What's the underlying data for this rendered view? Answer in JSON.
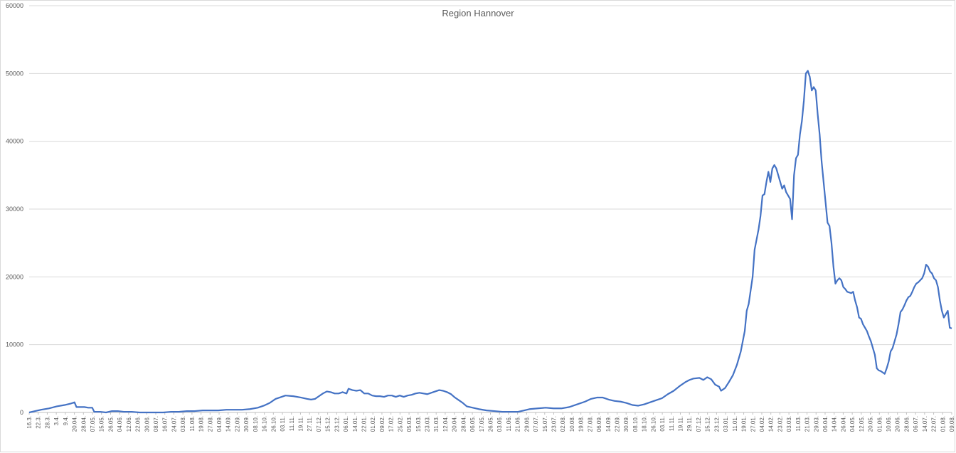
{
  "chart_data": {
    "type": "line",
    "title": "Region Hannover",
    "xlabel": "",
    "ylabel": "",
    "ylim": [
      0,
      60000
    ],
    "yticks": [
      0,
      10000,
      20000,
      30000,
      40000,
      50000,
      60000
    ],
    "grid": true,
    "legend": "none",
    "line_color": "#4472c4",
    "x_tick_labels": [
      "16.3.",
      "22.3.",
      "28.3.",
      "3.4.",
      "9.4.",
      "20.04.",
      "28.04.",
      "07.05.",
      "15.05.",
      "26.05.",
      "04.06.",
      "12.06.",
      "22.06.",
      "30.06.",
      "08.07.",
      "16.07.",
      "24.07.",
      "03.08.",
      "11.08.",
      "19.08.",
      "27.08.",
      "04.09.",
      "14.09.",
      "22.09.",
      "30.09.",
      "08.10.",
      "16.10.",
      "26.10.",
      "03.11.",
      "11.11.",
      "19.11.",
      "27.11.",
      "07.12.",
      "15.12.",
      "23.12.",
      "06.01.",
      "14.01.",
      "22.01.",
      "01.02.",
      "09.02.",
      "17.02.",
      "25.02.",
      "05.03.",
      "15.03.",
      "23.03.",
      "31.03.",
      "12.04.",
      "20.04.",
      "28.04.",
      "06.05.",
      "17.05.",
      "26.05.",
      "03.06.",
      "11.06.",
      "21.06.",
      "29.06.",
      "07.07.",
      "15.07.",
      "23.07.",
      "02.08.",
      "10.08.",
      "19.08.",
      "27.08.",
      "06.09.",
      "14.09.",
      "22.09.",
      "30.09.",
      "08.10.",
      "18.10.",
      "26.10.",
      "03.11.",
      "11.11.",
      "19.11.",
      "29.11.",
      "07.12.",
      "15.12.",
      "23.12.",
      "03.01.",
      "11.01.",
      "19.01.",
      "27.01.",
      "04.02.",
      "14.02.",
      "23.02.",
      "03.03.",
      "11.03.",
      "21.03.",
      "29.03.",
      "06.04.",
      "14.04.",
      "26.04.",
      "04.05.",
      "12.05.",
      "20.05.",
      "01.06.",
      "10.06.",
      "20.06.",
      "28.06.",
      "06.07.",
      "14.07.",
      "22.07.",
      "01.08.",
      "09.08."
    ],
    "series": [
      {
        "values": [
          [
            0,
            0
          ],
          [
            3,
            200
          ],
          [
            6,
            400
          ],
          [
            10,
            600
          ],
          [
            14,
            900
          ],
          [
            18,
            1100
          ],
          [
            21,
            1300
          ],
          [
            23,
            1500
          ],
          [
            24,
            800
          ],
          [
            26,
            800
          ],
          [
            28,
            800
          ],
          [
            30,
            700
          ],
          [
            32,
            700
          ],
          [
            33,
            100
          ],
          [
            36,
            100
          ],
          [
            39,
            0
          ],
          [
            42,
            200
          ],
          [
            45,
            200
          ],
          [
            48,
            100
          ],
          [
            52,
            100
          ],
          [
            56,
            0
          ],
          [
            60,
            0
          ],
          [
            64,
            0
          ],
          [
            68,
            0
          ],
          [
            72,
            100
          ],
          [
            76,
            100
          ],
          [
            80,
            200
          ],
          [
            84,
            200
          ],
          [
            88,
            300
          ],
          [
            92,
            300
          ],
          [
            96,
            300
          ],
          [
            100,
            400
          ],
          [
            104,
            400
          ],
          [
            108,
            400
          ],
          [
            112,
            500
          ],
          [
            116,
            700
          ],
          [
            119,
            1000
          ],
          [
            122,
            1400
          ],
          [
            125,
            2000
          ],
          [
            127,
            2200
          ],
          [
            130,
            2500
          ],
          [
            134,
            2400
          ],
          [
            138,
            2200
          ],
          [
            141,
            2000
          ],
          [
            143,
            1900
          ],
          [
            145,
            2000
          ],
          [
            147,
            2400
          ],
          [
            149,
            2800
          ],
          [
            151,
            3100
          ],
          [
            153,
            3000
          ],
          [
            155,
            2800
          ],
          [
            157,
            2800
          ],
          [
            159,
            3000
          ],
          [
            161,
            2800
          ],
          [
            162,
            3500
          ],
          [
            164,
            3300
          ],
          [
            166,
            3200
          ],
          [
            168,
            3300
          ],
          [
            170,
            2800
          ],
          [
            172,
            2800
          ],
          [
            174,
            2500
          ],
          [
            176,
            2400
          ],
          [
            178,
            2400
          ],
          [
            180,
            2300
          ],
          [
            182,
            2500
          ],
          [
            184,
            2500
          ],
          [
            186,
            2300
          ],
          [
            188,
            2500
          ],
          [
            190,
            2300
          ],
          [
            192,
            2500
          ],
          [
            194,
            2600
          ],
          [
            196,
            2800
          ],
          [
            198,
            2900
          ],
          [
            200,
            2800
          ],
          [
            202,
            2700
          ],
          [
            204,
            2900
          ],
          [
            206,
            3100
          ],
          [
            208,
            3300
          ],
          [
            210,
            3200
          ],
          [
            212,
            3000
          ],
          [
            214,
            2700
          ],
          [
            216,
            2200
          ],
          [
            218,
            1800
          ],
          [
            220,
            1400
          ],
          [
            222,
            900
          ],
          [
            225,
            700
          ],
          [
            228,
            500
          ],
          [
            232,
            300
          ],
          [
            236,
            200
          ],
          [
            240,
            100
          ],
          [
            244,
            100
          ],
          [
            248,
            100
          ],
          [
            251,
            300
          ],
          [
            254,
            500
          ],
          [
            258,
            600
          ],
          [
            262,
            700
          ],
          [
            266,
            600
          ],
          [
            270,
            600
          ],
          [
            274,
            800
          ],
          [
            278,
            1200
          ],
          [
            282,
            1600
          ],
          [
            285,
            2000
          ],
          [
            288,
            2200
          ],
          [
            291,
            2200
          ],
          [
            294,
            1900
          ],
          [
            297,
            1700
          ],
          [
            300,
            1600
          ],
          [
            303,
            1400
          ],
          [
            306,
            1100
          ],
          [
            309,
            1000
          ],
          [
            312,
            1200
          ],
          [
            315,
            1500
          ],
          [
            318,
            1800
          ],
          [
            321,
            2100
          ],
          [
            324,
            2700
          ],
          [
            327,
            3200
          ],
          [
            330,
            3900
          ],
          [
            333,
            4500
          ],
          [
            335,
            4800
          ],
          [
            337,
            5000
          ],
          [
            340,
            5100
          ],
          [
            342,
            4800
          ],
          [
            344,
            5200
          ],
          [
            346,
            4900
          ],
          [
            348,
            4100
          ],
          [
            350,
            3800
          ],
          [
            351,
            3200
          ],
          [
            353,
            3600
          ],
          [
            355,
            4500
          ],
          [
            357,
            5500
          ],
          [
            359,
            7000
          ],
          [
            361,
            9000
          ],
          [
            363,
            12000
          ],
          [
            364,
            15000
          ],
          [
            365,
            16000
          ],
          [
            366,
            18000
          ],
          [
            367,
            20000
          ],
          [
            368,
            24000
          ],
          [
            370,
            27000
          ],
          [
            371,
            29000
          ],
          [
            372,
            32000
          ],
          [
            373,
            32200
          ],
          [
            374,
            34000
          ],
          [
            375,
            35500
          ],
          [
            376,
            34000
          ],
          [
            377,
            36000
          ],
          [
            378,
            36500
          ],
          [
            379,
            36000
          ],
          [
            380,
            35000
          ],
          [
            381,
            34000
          ],
          [
            382,
            33000
          ],
          [
            383,
            33500
          ],
          [
            384,
            32500
          ],
          [
            385,
            32000
          ],
          [
            386,
            31500
          ],
          [
            387,
            28500
          ],
          [
            388,
            35000
          ],
          [
            389,
            37500
          ],
          [
            390,
            38000
          ],
          [
            391,
            41000
          ],
          [
            392,
            43000
          ],
          [
            393,
            46000
          ],
          [
            394,
            50000
          ],
          [
            395,
            50400
          ],
          [
            396,
            49500
          ],
          [
            397,
            47500
          ],
          [
            398,
            48000
          ],
          [
            399,
            47500
          ],
          [
            400,
            44000
          ],
          [
            401,
            41000
          ],
          [
            402,
            37000
          ],
          [
            403,
            34000
          ],
          [
            404,
            31000
          ],
          [
            405,
            28000
          ],
          [
            406,
            27500
          ],
          [
            407,
            25000
          ],
          [
            408,
            21500
          ],
          [
            409,
            19000
          ],
          [
            410,
            19500
          ],
          [
            411,
            19800
          ],
          [
            412,
            19500
          ],
          [
            413,
            18500
          ],
          [
            414,
            18200
          ],
          [
            415,
            17800
          ],
          [
            416,
            17700
          ],
          [
            417,
            17600
          ],
          [
            418,
            17800
          ],
          [
            419,
            16500
          ],
          [
            420,
            15500
          ],
          [
            421,
            14000
          ],
          [
            422,
            13800
          ],
          [
            423,
            13000
          ],
          [
            424,
            12500
          ],
          [
            425,
            12000
          ],
          [
            426,
            11200
          ],
          [
            427,
            10500
          ],
          [
            428,
            9500
          ],
          [
            429,
            8500
          ],
          [
            430,
            6500
          ],
          [
            431,
            6200
          ],
          [
            432,
            6100
          ],
          [
            433,
            5900
          ],
          [
            434,
            5700
          ],
          [
            435,
            6500
          ],
          [
            436,
            7500
          ],
          [
            437,
            9000
          ],
          [
            438,
            9500
          ],
          [
            439,
            10500
          ],
          [
            440,
            11500
          ],
          [
            441,
            13000
          ],
          [
            442,
            14800
          ],
          [
            443,
            15200
          ],
          [
            444,
            15800
          ],
          [
            445,
            16500
          ],
          [
            446,
            17000
          ],
          [
            447,
            17200
          ],
          [
            448,
            17800
          ],
          [
            449,
            18500
          ],
          [
            450,
            19000
          ],
          [
            451,
            19200
          ],
          [
            452,
            19500
          ],
          [
            453,
            19800
          ],
          [
            454,
            20500
          ],
          [
            455,
            21800
          ],
          [
            456,
            21500
          ],
          [
            457,
            20800
          ],
          [
            458,
            20500
          ],
          [
            459,
            19800
          ],
          [
            460,
            19500
          ],
          [
            461,
            18500
          ],
          [
            462,
            16500
          ],
          [
            463,
            15000
          ],
          [
            464,
            14000
          ],
          [
            465,
            14500
          ],
          [
            466,
            15000
          ],
          [
            467,
            12500
          ],
          [
            468,
            12400
          ]
        ]
      }
    ]
  }
}
